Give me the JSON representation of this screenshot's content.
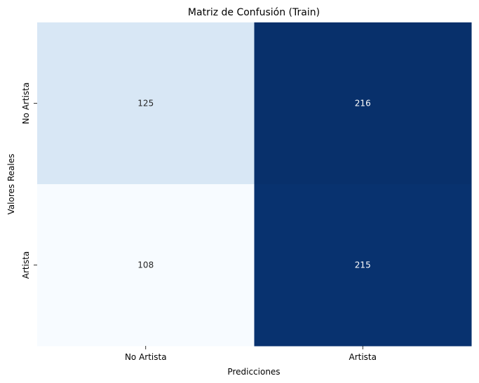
{
  "chart_data": {
    "type": "heatmap",
    "title": "Matriz de Confusión (Train)",
    "xlabel": "Predicciones",
    "ylabel": "Valores Reales",
    "x_categories": [
      "No Artista",
      "Artista"
    ],
    "y_categories": [
      "No Artista",
      "Artista"
    ],
    "values": [
      [
        125,
        216
      ],
      [
        108,
        215
      ]
    ],
    "colormap": "Blues",
    "color_low": "#f7fbff",
    "color_high": "#08306b",
    "colorbar": false,
    "grid": false
  }
}
